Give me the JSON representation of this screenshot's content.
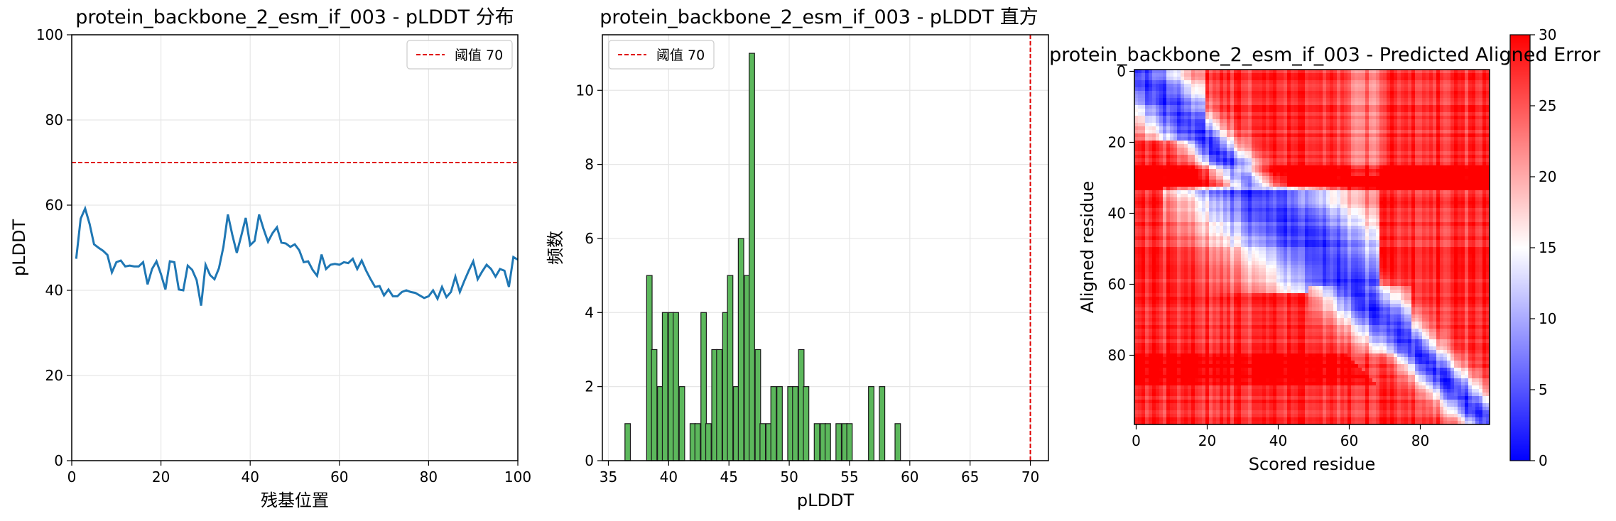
{
  "chart_data": [
    {
      "type": "line",
      "title": "protein_backbone_2_esm_if_003 - pLDDT 分布",
      "xlabel": "残基位置",
      "ylabel": "pLDDT",
      "xlim": [
        0,
        100
      ],
      "ylim": [
        0,
        100
      ],
      "xticks": [
        "0",
        "20",
        "40",
        "60",
        "80",
        "100"
      ],
      "yticks": [
        "0",
        "20",
        "40",
        "60",
        "80",
        "100"
      ],
      "grid": true,
      "legend": "top-right",
      "line_color": "#1f77b4",
      "threshold": {
        "value": 70,
        "label": "阈值 70",
        "color": "#e00000"
      },
      "series": [
        {
          "x": [
            1,
            2,
            3,
            4,
            5,
            6,
            7,
            8,
            9,
            10,
            11,
            12,
            13,
            14,
            15,
            16,
            17,
            18,
            19,
            20,
            21,
            22,
            23,
            24,
            25,
            26,
            27,
            28,
            29,
            30,
            31,
            32,
            33,
            34,
            35,
            36,
            37,
            38,
            39,
            40,
            41,
            42,
            43,
            44,
            45,
            46,
            47,
            48,
            49,
            50,
            51,
            52,
            53,
            54,
            55,
            56,
            57,
            58,
            59,
            60,
            61,
            62,
            63,
            64,
            65,
            66,
            67,
            68,
            69,
            70,
            71,
            72,
            73,
            74,
            75,
            76,
            77,
            78,
            79,
            80,
            81,
            82,
            83,
            84,
            85,
            86,
            87,
            88,
            89,
            90,
            91,
            92,
            93,
            94,
            95,
            96,
            97,
            98,
            99,
            100
          ],
          "values": [
            47.4,
            56.8,
            59.2,
            55.6,
            50.8,
            50.0,
            49.3,
            48.3,
            44.2,
            46.6,
            47.0,
            45.6,
            45.8,
            45.6,
            45.6,
            46.6,
            41.4,
            45.0,
            46.8,
            43.8,
            40.2,
            46.8,
            46.6,
            40.2,
            40.0,
            45.8,
            44.8,
            42.4,
            36.4,
            46.0,
            43.6,
            42.6,
            45.2,
            50.2,
            57.8,
            53.0,
            48.8,
            52.8,
            57.0,
            50.6,
            51.6,
            57.8,
            54.4,
            51.4,
            53.4,
            54.8,
            51.2,
            51.0,
            50.2,
            50.8,
            49.4,
            46.6,
            46.8,
            44.8,
            43.4,
            48.4,
            45.0,
            46.0,
            46.2,
            46.0,
            46.6,
            46.4,
            47.4,
            45.0,
            47.0,
            44.6,
            42.6,
            40.8,
            41.0,
            38.8,
            40.2,
            38.6,
            38.6,
            39.6,
            40.0,
            39.6,
            39.4,
            38.8,
            38.2,
            38.6,
            40.0,
            38.0,
            40.8,
            38.4,
            39.6,
            43.2,
            39.6,
            42.2,
            44.6,
            46.8,
            42.6,
            44.4,
            46.0,
            45.0,
            43.2,
            45.0,
            44.6,
            40.8,
            47.8,
            47.2
          ]
        }
      ]
    },
    {
      "type": "bar",
      "title": "protein_backbone_2_esm_if_003 - pLDDT 直方",
      "xlabel": "pLDDT",
      "ylabel": "频数",
      "xlim": [
        34.5,
        71.5
      ],
      "ylim": [
        0,
        11.5
      ],
      "xticks": [
        "35",
        "40",
        "45",
        "50",
        "55",
        "60",
        "65",
        "70"
      ],
      "yticks": [
        "0",
        "2",
        "4",
        "6",
        "8",
        "10"
      ],
      "grid": true,
      "legend": "top-left",
      "bar_color": "#5cb85c",
      "bin_width": 0.45,
      "threshold": {
        "value": 70,
        "label": "阈值 70",
        "color": "#e00000"
      },
      "bins": [
        {
          "x": 36.6,
          "count": 1
        },
        {
          "x": 38.4,
          "count": 5
        },
        {
          "x": 38.8,
          "count": 3
        },
        {
          "x": 39.3,
          "count": 2
        },
        {
          "x": 39.7,
          "count": 4
        },
        {
          "x": 40.2,
          "count": 4
        },
        {
          "x": 40.6,
          "count": 4
        },
        {
          "x": 41.1,
          "count": 2
        },
        {
          "x": 42.0,
          "count": 1
        },
        {
          "x": 42.4,
          "count": 1
        },
        {
          "x": 42.9,
          "count": 4
        },
        {
          "x": 43.3,
          "count": 1
        },
        {
          "x": 43.8,
          "count": 3
        },
        {
          "x": 44.2,
          "count": 3
        },
        {
          "x": 44.7,
          "count": 4
        },
        {
          "x": 45.1,
          "count": 5
        },
        {
          "x": 45.6,
          "count": 2
        },
        {
          "x": 46.0,
          "count": 6
        },
        {
          "x": 46.5,
          "count": 5
        },
        {
          "x": 46.9,
          "count": 11
        },
        {
          "x": 47.4,
          "count": 3
        },
        {
          "x": 47.8,
          "count": 1
        },
        {
          "x": 48.3,
          "count": 1
        },
        {
          "x": 48.7,
          "count": 2
        },
        {
          "x": 49.2,
          "count": 2
        },
        {
          "x": 50.1,
          "count": 2
        },
        {
          "x": 50.5,
          "count": 2
        },
        {
          "x": 51.0,
          "count": 3
        },
        {
          "x": 51.4,
          "count": 2
        },
        {
          "x": 52.3,
          "count": 1
        },
        {
          "x": 52.8,
          "count": 1
        },
        {
          "x": 53.2,
          "count": 1
        },
        {
          "x": 54.1,
          "count": 1
        },
        {
          "x": 54.6,
          "count": 1
        },
        {
          "x": 55.0,
          "count": 1
        },
        {
          "x": 56.8,
          "count": 2
        },
        {
          "x": 57.7,
          "count": 2
        },
        {
          "x": 59.0,
          "count": 1
        }
      ]
    },
    {
      "type": "heatmap",
      "title": "protein_backbone_2_esm_if_003 - Predicted Aligned Error",
      "xlabel": "Scored residue",
      "ylabel": "Aligned residue",
      "size": 100,
      "xticks": [
        "0",
        "20",
        "40",
        "60",
        "80"
      ],
      "yticks": [
        "0",
        "20",
        "40",
        "60",
        "80"
      ],
      "colorbar": {
        "min": 0,
        "max": 30,
        "ticks": [
          "0",
          "5",
          "10",
          "15",
          "20",
          "25",
          "30"
        ],
        "colors": [
          "#0000ff",
          "#ffffff",
          "#ff0000"
        ]
      }
    }
  ]
}
